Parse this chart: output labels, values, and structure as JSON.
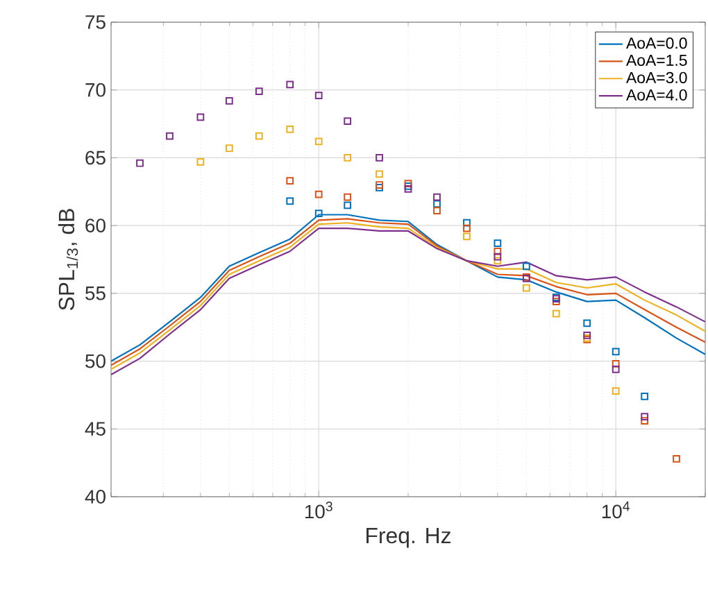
{
  "chart_data": {
    "type": "line",
    "xlabel": "Freq. Hz",
    "ylabel": "SPL$_{1/3}$, dB",
    "log": "x",
    "grid": true,
    "legend": "top right",
    "line_style": "solid",
    "xlim": [
      200,
      20000
    ],
    "ylim": [
      40,
      75
    ],
    "xticks": [
      {
        "value": 1000,
        "label": "10$^{3}$"
      },
      {
        "value": 10000,
        "label": "10$^{4}$"
      }
    ],
    "yticks": [
      40,
      45,
      50,
      55,
      60,
      65,
      70,
      75
    ],
    "series": [
      {
        "name": "AoA=0.0",
        "marker": "none",
        "color": "#0072bd",
        "x": [
          200,
          250,
          315,
          400,
          500,
          630,
          800,
          1000,
          1250,
          1600,
          2000,
          2500,
          3150,
          4000,
          5000,
          6300,
          8000,
          10000,
          12500,
          16000,
          20000
        ],
        "values": [
          50.0,
          51.2,
          52.9,
          54.7,
          57.0,
          58.0,
          59.0,
          60.8,
          60.8,
          60.4,
          60.3,
          58.6,
          57.4,
          56.2,
          56.0,
          55.1,
          54.4,
          54.5,
          53.2,
          51.7,
          50.5
        ]
      },
      {
        "name": "AoA=1.5",
        "marker": "none",
        "color": "#d95319",
        "x": [
          200,
          250,
          315,
          400,
          500,
          630,
          800,
          1000,
          1250,
          1600,
          2000,
          2500,
          3150,
          4000,
          5000,
          6300,
          8000,
          10000,
          12500,
          16000,
          20000
        ],
        "values": [
          49.7,
          50.9,
          52.6,
          54.4,
          56.7,
          57.7,
          58.7,
          60.4,
          60.5,
          60.2,
          60.1,
          58.5,
          57.4,
          56.4,
          56.3,
          55.5,
          54.9,
          55.0,
          53.8,
          52.5,
          51.4
        ]
      },
      {
        "name": "AoA=3.0",
        "marker": "none",
        "color": "#edb120",
        "x": [
          200,
          250,
          315,
          400,
          500,
          630,
          800,
          1000,
          1250,
          1600,
          2000,
          2500,
          3150,
          4000,
          5000,
          6300,
          8000,
          10000,
          12500,
          16000,
          20000
        ],
        "values": [
          49.4,
          50.6,
          52.3,
          54.1,
          56.4,
          57.4,
          58.4,
          60.1,
          60.2,
          59.9,
          59.8,
          58.4,
          57.4,
          56.8,
          56.8,
          55.8,
          55.4,
          55.7,
          54.5,
          53.4,
          52.2
        ]
      },
      {
        "name": "AoA=4.0",
        "marker": "none",
        "color": "#7e2f8e",
        "x": [
          200,
          250,
          315,
          400,
          500,
          630,
          800,
          1000,
          1250,
          1600,
          2000,
          2500,
          3150,
          4000,
          5000,
          6300,
          8000,
          10000,
          12500,
          16000,
          20000
        ],
        "values": [
          49.0,
          50.2,
          52.0,
          53.8,
          56.1,
          57.1,
          58.1,
          59.8,
          59.8,
          59.6,
          59.6,
          58.3,
          57.4,
          57.0,
          57.3,
          56.3,
          56.0,
          56.2,
          55.1,
          54.0,
          52.9
        ]
      },
      {
        "type": "scatter",
        "marker": "square",
        "color": "#0072bd",
        "x": [
          800,
          1000,
          1250,
          1600,
          2000,
          2500,
          3150,
          4000,
          5000,
          6300,
          8000,
          10000,
          12500
        ],
        "values": [
          61.8,
          60.9,
          61.5,
          62.8,
          62.9,
          61.6,
          60.2,
          58.7,
          57.0,
          54.7,
          52.8,
          50.7,
          47.4
        ]
      },
      {
        "type": "scatter",
        "marker": "square",
        "color": "#d95319",
        "x": [
          800,
          1000,
          1250,
          1600,
          2000,
          2500,
          3150,
          4000,
          5000,
          6300,
          8000,
          10000,
          12500,
          16000
        ],
        "values": [
          63.3,
          62.3,
          62.1,
          63.0,
          63.1,
          61.1,
          59.8,
          58.1,
          56.2,
          54.4,
          51.6,
          49.8,
          45.6,
          42.8
        ]
      },
      {
        "type": "scatter",
        "marker": "square",
        "color": "#edb120",
        "x": [
          400,
          500,
          630,
          800,
          1000,
          1250,
          1600,
          2000,
          2500,
          3150,
          4000,
          5000,
          6300,
          8000,
          10000
        ],
        "values": [
          64.7,
          65.7,
          66.6,
          67.1,
          66.2,
          65.0,
          63.8,
          null,
          null,
          59.2,
          57.4,
          55.4,
          53.5,
          51.7,
          47.8
        ]
      },
      {
        "type": "scatter",
        "marker": "square",
        "color": "#7e2f8e",
        "x": [
          250,
          315,
          400,
          500,
          630,
          800,
          1000,
          1250,
          1600,
          2000,
          2500,
          3150,
          4000,
          5000,
          6300,
          8000,
          10000,
          12500
        ],
        "values": [
          64.6,
          66.6,
          68.0,
          69.2,
          69.9,
          70.4,
          69.6,
          67.7,
          65.0,
          62.7,
          62.1,
          null,
          57.7,
          56.1,
          54.6,
          51.9,
          49.4,
          45.9
        ]
      }
    ]
  }
}
